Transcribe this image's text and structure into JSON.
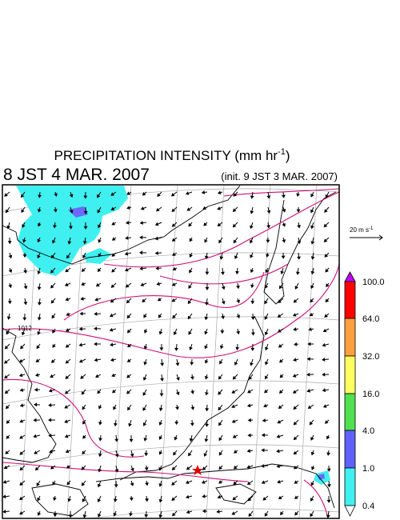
{
  "header": {
    "title": "PRECIPITATION INTENSITY (mm hr",
    "title_exponent": "-1",
    "title_close": ")",
    "valid_time": "8 JST 4 MAR. 2007",
    "init_time": "(init. 9 JST 3 MAR. 2007)"
  },
  "map": {
    "contour_label": "1012"
  },
  "wind_scale": {
    "label": "20 m s",
    "exponent": "-1"
  },
  "colorbar": {
    "levels": [
      "100.0",
      "64.0",
      "32.0",
      "16.0",
      "4.0",
      "1.0",
      "0.4"
    ]
  }
}
